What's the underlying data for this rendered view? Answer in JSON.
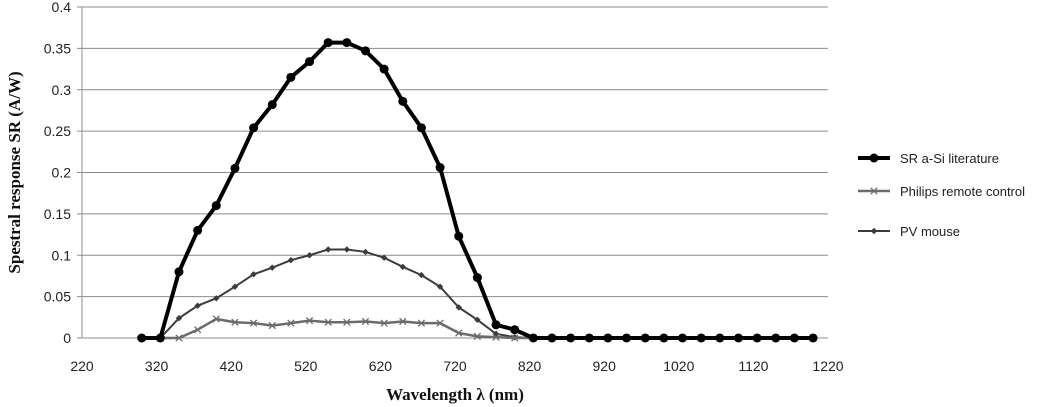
{
  "chart_data": {
    "type": "line",
    "xlabel": "Wavelength λ (nm)",
    "ylabel": "Spestral response SR (A/W)",
    "xlim": [
      220,
      1220
    ],
    "ylim": [
      0,
      0.4
    ],
    "x_ticks": [
      "220",
      "320",
      "420",
      "520",
      "620",
      "720",
      "820",
      "920",
      "1020",
      "1120",
      "1220"
    ],
    "y_ticks": [
      "0",
      "0.05",
      "0.1",
      "0.15",
      "0.2",
      "0.25",
      "0.3",
      "0.35",
      "0.4"
    ],
    "grid": "horizontal",
    "legend_position": "right",
    "x": [
      300,
      325,
      350,
      375,
      400,
      425,
      450,
      475,
      500,
      525,
      550,
      575,
      600,
      625,
      650,
      675,
      700,
      725,
      750,
      775,
      800,
      825,
      850,
      875,
      900,
      925,
      950,
      975,
      1000,
      1025,
      1050,
      1075,
      1100,
      1125,
      1150,
      1175,
      1200
    ],
    "series": [
      {
        "name": "SR a-Si literature",
        "color": "#000000",
        "marker": "circle",
        "values": [
          0,
          0,
          0.08,
          0.13,
          0.16,
          0.205,
          0.254,
          0.282,
          0.315,
          0.334,
          0.357,
          0.357,
          0.347,
          0.325,
          0.286,
          0.254,
          0.206,
          0.123,
          0.073,
          0.016,
          0.01,
          0,
          0,
          0,
          0,
          0,
          0,
          0,
          0,
          0,
          0,
          0,
          0,
          0,
          0,
          0,
          0
        ]
      },
      {
        "name": "Philips remote control",
        "color": "#6b6b6b",
        "marker": "cross",
        "values": [
          0,
          0,
          0,
          0.01,
          0.023,
          0.019,
          0.018,
          0.015,
          0.018,
          0.021,
          0.019,
          0.019,
          0.02,
          0.018,
          0.02,
          0.018,
          0.018,
          0.006,
          0.002,
          0.001,
          0,
          0,
          0,
          0,
          0,
          0,
          0,
          0,
          0,
          0,
          0,
          0,
          0,
          0,
          0,
          0,
          0
        ]
      },
      {
        "name": "PV mouse",
        "color": "#3c3c3c",
        "marker": "diamond",
        "values": [
          0,
          0,
          0.024,
          0.039,
          0.048,
          0.062,
          0.077,
          0.085,
          0.094,
          0.1,
          0.107,
          0.107,
          0.104,
          0.097,
          0.086,
          0.076,
          0.062,
          0.037,
          0.022,
          0.005,
          0.001,
          0,
          0,
          0,
          0,
          0,
          0,
          0,
          0,
          0,
          0,
          0,
          0,
          0,
          0,
          0,
          0
        ]
      }
    ]
  }
}
